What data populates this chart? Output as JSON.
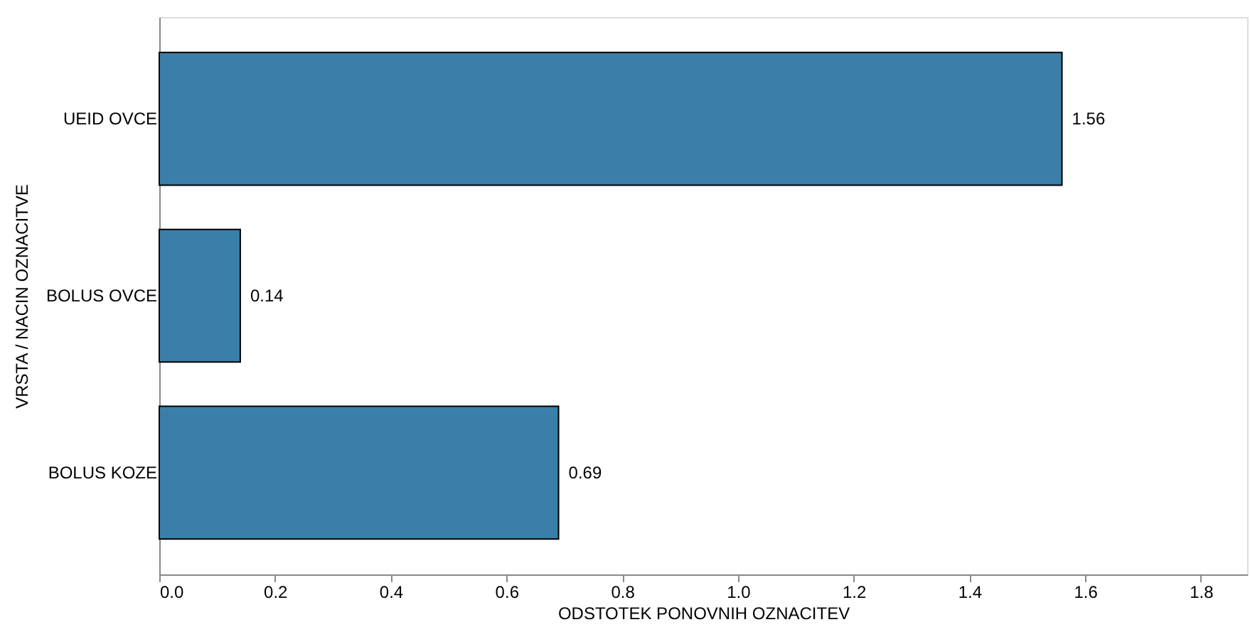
{
  "chart_data": {
    "type": "bar",
    "orientation": "horizontal",
    "xlabel": "ODSTOTEK PONOVNIH OZNACITEV",
    "ylabel": "VRSTA / NACIN OZNACITVE",
    "categories": [
      "UEID OVCE",
      "BOLUS OVCE",
      "BOLUS KOZE"
    ],
    "values": [
      1.56,
      0.14,
      0.69
    ],
    "color": "#3a7fa8",
    "data_labels": true,
    "grid": false,
    "xlim": [
      0,
      1.88
    ],
    "xticks": [
      {
        "value": 0,
        "label": "0.0"
      },
      0.2,
      0.4,
      0.6,
      0.8,
      {
        "value": 1,
        "label": "1.0"
      },
      1.2,
      1.4,
      1.6,
      1.8
    ]
  }
}
